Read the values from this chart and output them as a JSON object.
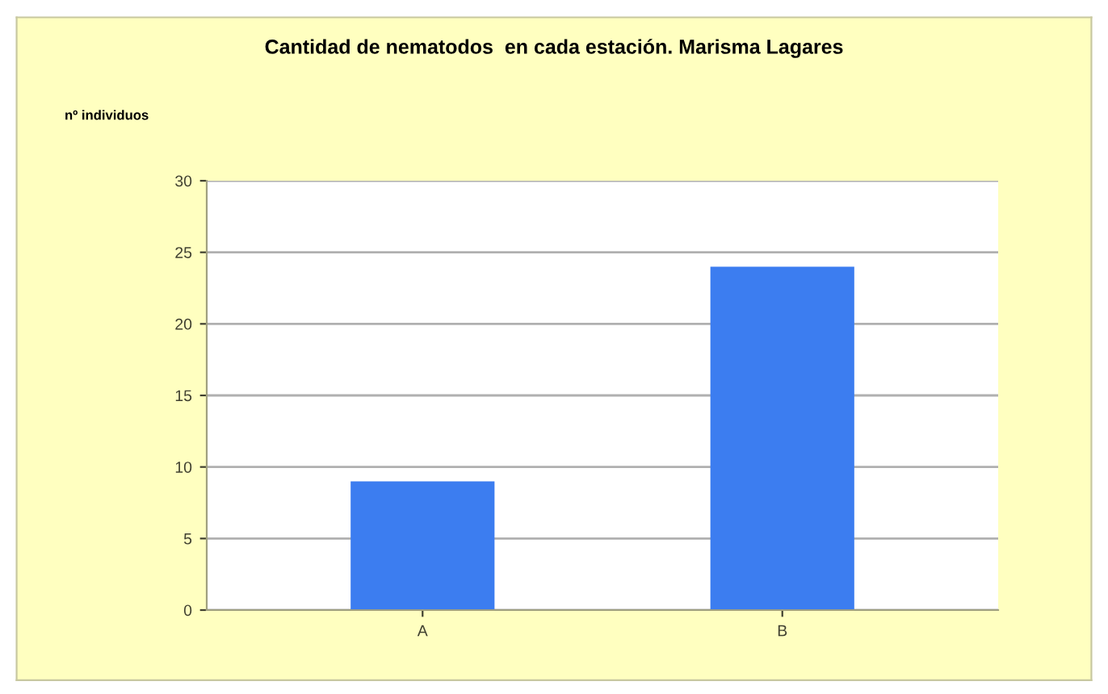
{
  "chart_data": {
    "type": "bar",
    "title": "Cantidad de nematodos  en cada estación. Marisma Lagares",
    "ylabel": "nº individuos",
    "categories": [
      "A",
      "B"
    ],
    "values": [
      9,
      24
    ],
    "color": "#3c7df0",
    "ylim": [
      0,
      30
    ],
    "yticks": [
      0,
      5,
      10,
      15,
      20,
      25,
      30
    ],
    "grid": "y",
    "legend": false
  }
}
